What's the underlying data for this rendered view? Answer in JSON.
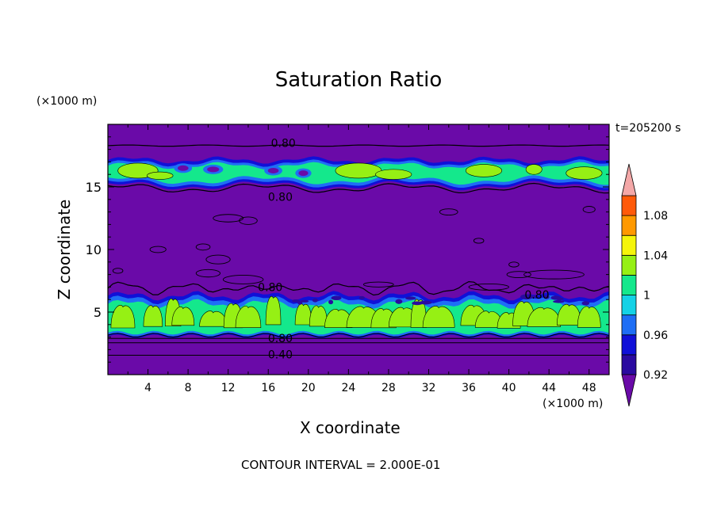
{
  "chart_data": {
    "type": "heatmap",
    "title": "Saturation Ratio",
    "xlabel": "X coordinate",
    "ylabel": "Z coordinate",
    "x_unit": "(×1000 m)",
    "z_unit": "(×1000 m)",
    "time_label": "t=205200 s",
    "footer": "CONTOUR INTERVAL = 2.000E-01",
    "xlim": [
      0,
      50
    ],
    "ylim": [
      0,
      20
    ],
    "x_ticks": [
      4,
      8,
      12,
      16,
      20,
      24,
      28,
      32,
      36,
      40,
      44,
      48
    ],
    "y_ticks": [
      5,
      10,
      15
    ],
    "colorbar": {
      "tick_labels": [
        "0.92",
        "0.96",
        "1",
        "1.04",
        "1.08"
      ],
      "levels": [
        0.92,
        0.94,
        0.96,
        0.98,
        1.0,
        1.02,
        1.04,
        1.06,
        1.08,
        1.1
      ],
      "colors": [
        "#6a0aa8",
        "#2a0aa0",
        "#1010d8",
        "#1e6ef5",
        "#14d2e6",
        "#14e88c",
        "#96f014",
        "#f5f50a",
        "#ff9900",
        "#ff5a0a",
        "#e61e1e",
        "#f4a8a8"
      ]
    },
    "bands": [
      {
        "z0": 0,
        "z1": 3.0,
        "value": "<0.92"
      },
      {
        "z0": 3.0,
        "z1": 6.3,
        "value": "0.96-1.02",
        "note": "lower cloud layer"
      },
      {
        "z0": 6.3,
        "z1": 15.0,
        "value": "<0.92"
      },
      {
        "z0": 15.0,
        "z1": 17.2,
        "value": "0.96-1.02",
        "note": "upper cloud layer"
      },
      {
        "z0": 17.2,
        "z1": 20,
        "value": "<0.92"
      }
    ],
    "contour_labels": [
      {
        "text": "0.80",
        "x": 17.5,
        "z": 18.5
      },
      {
        "text": "0.80",
        "x": 17.2,
        "z": 14.2
      },
      {
        "text": "0.80",
        "x": 16.2,
        "z": 7.0
      },
      {
        "text": "0.80",
        "x": 42.8,
        "z": 6.4
      },
      {
        "text": "0.80",
        "x": 17.2,
        "z": 2.9
      },
      {
        "text": "0.40",
        "x": 17.2,
        "z": 1.6
      }
    ]
  }
}
